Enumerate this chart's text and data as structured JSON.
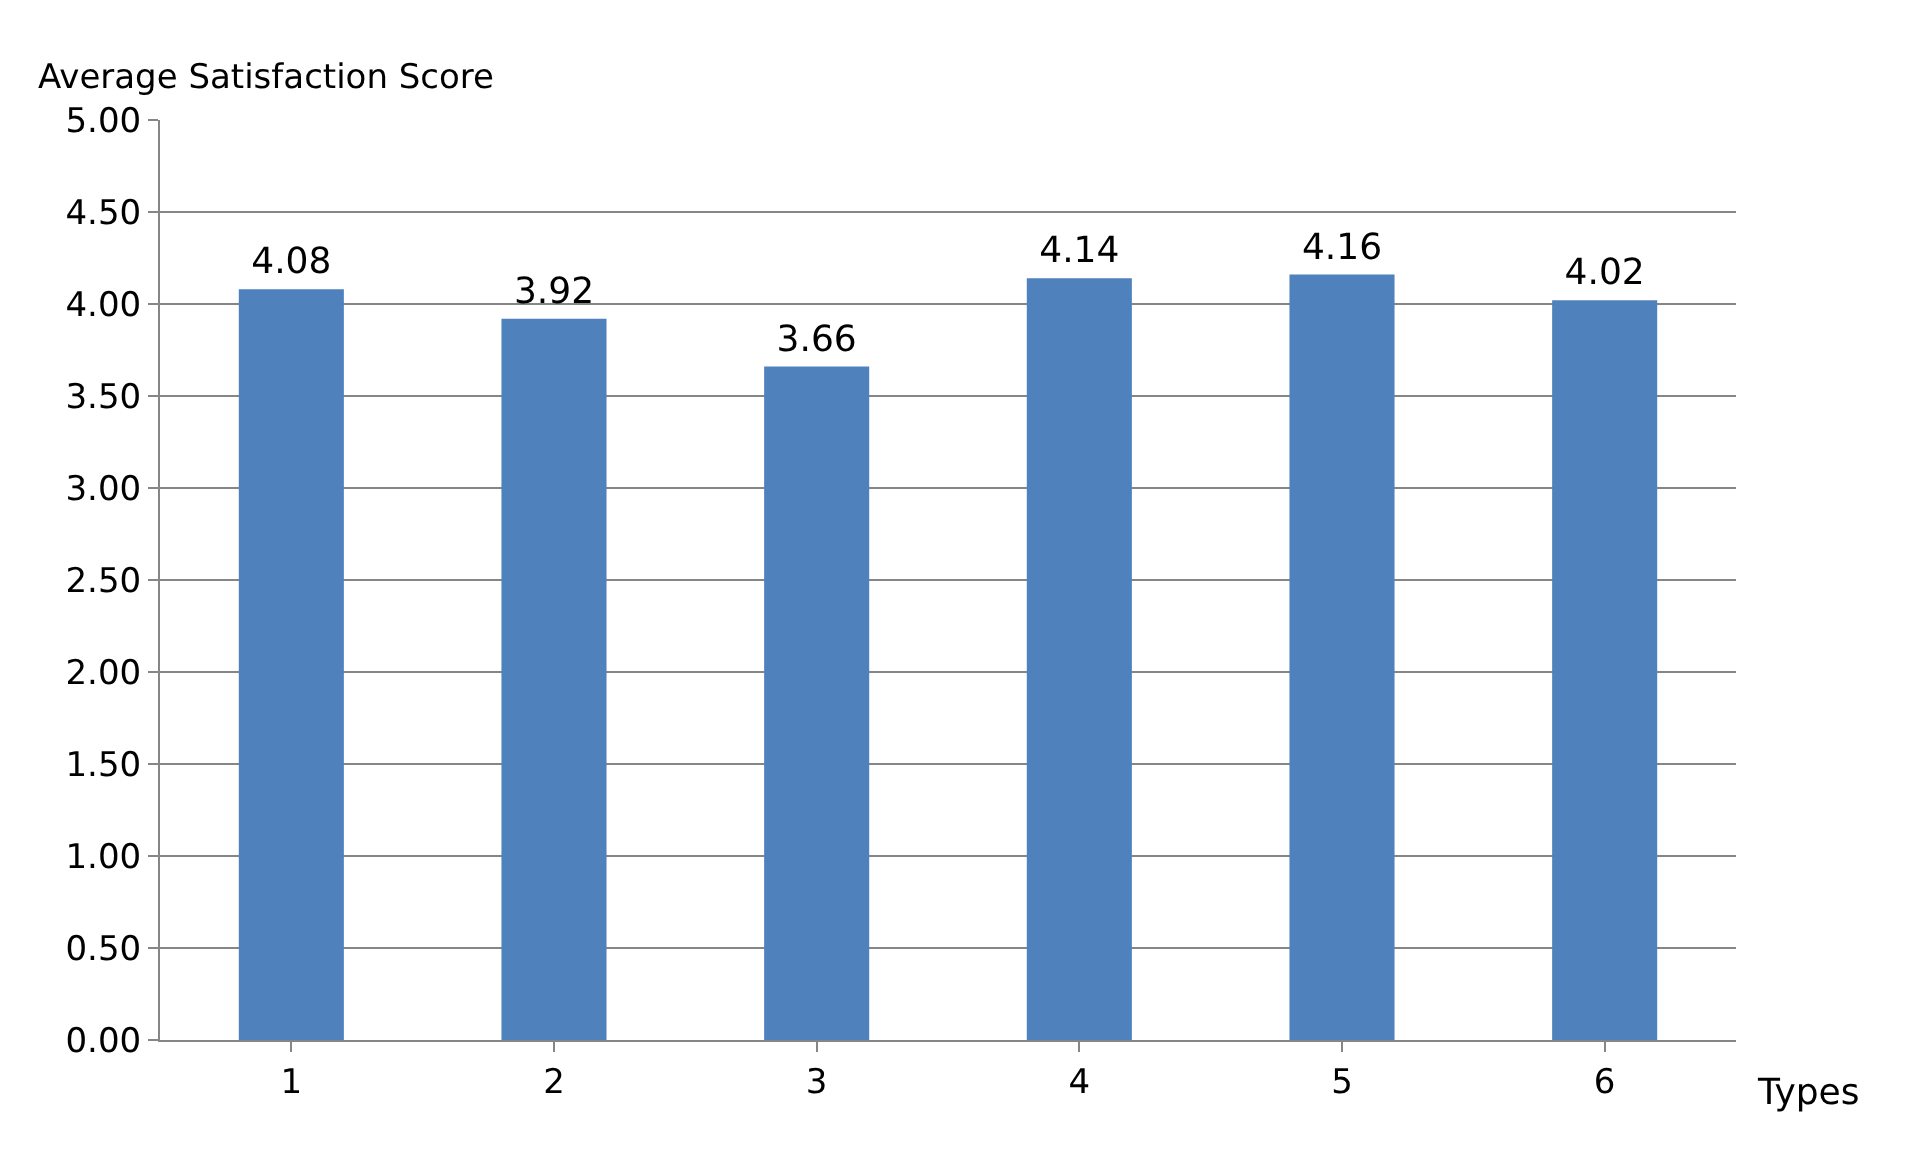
{
  "chart_data": {
    "type": "bar",
    "ylabel": "Average Satisfaction Score",
    "xlabel": "Types",
    "categories": [
      "1",
      "2",
      "3",
      "4",
      "5",
      "6"
    ],
    "values": [
      4.08,
      3.92,
      3.66,
      4.14,
      4.16,
      4.02
    ],
    "color": "#4f81bd",
    "ylim": [
      0,
      5
    ],
    "yticks": [
      {
        "value": 0,
        "label": "0.00"
      },
      {
        "value": 0.5,
        "label": "0.50"
      },
      {
        "value": 1,
        "label": "1.00"
      },
      {
        "value": 1.5,
        "label": "1.50"
      },
      {
        "value": 2,
        "label": "2.00"
      },
      {
        "value": 2.5,
        "label": "2.50"
      },
      {
        "value": 3,
        "label": "3.00"
      },
      {
        "value": 3.5,
        "label": "3.50"
      },
      {
        "value": 4,
        "label": "4.00"
      },
      {
        "value": 4.5,
        "label": "4.50"
      },
      {
        "value": 5,
        "label": "5.00"
      }
    ],
    "grid": "y",
    "data_labels": true
  }
}
